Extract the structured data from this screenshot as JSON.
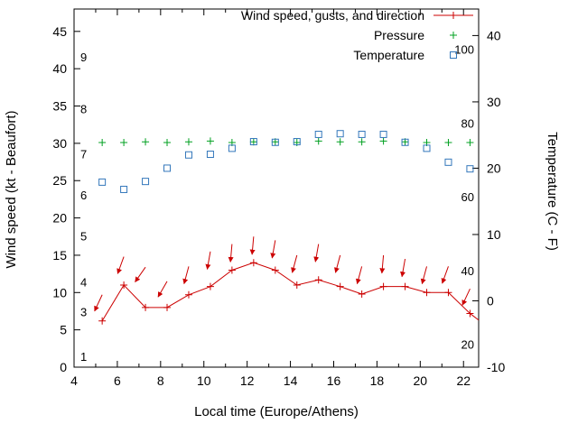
{
  "chart_data": {
    "type": "line",
    "title": "",
    "xlabel": "Local time (Europe/Athens)",
    "ylabel_left": "Wind speed (kt - Beaufort)",
    "ylabel_right": "Temperature (C - F)",
    "x_range": [
      4,
      22.7
    ],
    "x_ticks": [
      4,
      6,
      8,
      10,
      12,
      14,
      16,
      18,
      20,
      22
    ],
    "y_left_range": [
      0,
      48
    ],
    "y_left_ticks": [
      0,
      5,
      10,
      15,
      20,
      25,
      30,
      35,
      40,
      45
    ],
    "y_right_range": [
      -10,
      44
    ],
    "y_right_ticks": [
      -10,
      0,
      10,
      20,
      30,
      40
    ],
    "beaufort_labels": [
      {
        "label": "1",
        "kt": 1.3
      },
      {
        "label": "3",
        "kt": 7.3
      },
      {
        "label": "4",
        "kt": 11.3
      },
      {
        "label": "5",
        "kt": 17.5
      },
      {
        "label": "6",
        "kt": 23
      },
      {
        "label": "7",
        "kt": 28.5
      },
      {
        "label": "8",
        "kt": 34.5
      },
      {
        "label": "9",
        "kt": 41.5
      }
    ],
    "fahrenheit_labels": [
      {
        "label": "20",
        "f": 20
      },
      {
        "label": "40",
        "f": 40
      },
      {
        "label": "60",
        "f": 60
      },
      {
        "label": "80",
        "f": 80
      },
      {
        "label": "100",
        "f": 100
      }
    ],
    "legend": [
      {
        "label": "Wind speed, gusts, and direction",
        "marker": "line-plus",
        "color": "#cc0000"
      },
      {
        "label": "Pressure",
        "marker": "plus",
        "color": "#00a020"
      },
      {
        "label": "Temperature",
        "marker": "square",
        "color": "#3377bb"
      }
    ],
    "colors": {
      "wind": "#cc0000",
      "pressure": "#00a020",
      "temperature": "#3377bb",
      "axis": "#000000"
    },
    "x": [
      5.3,
      6.3,
      7.3,
      8.3,
      9.3,
      10.3,
      11.3,
      12.3,
      13.3,
      14.3,
      15.3,
      16.3,
      17.3,
      18.3,
      19.3,
      20.3,
      21.3,
      22.3
    ],
    "wind_speed_kt": [
      6.2,
      11,
      8,
      8,
      9.7,
      10.8,
      13,
      14,
      13,
      11,
      11.7,
      10.8,
      9.8,
      10.8,
      10.8,
      10,
      10,
      7.2
    ],
    "wind_tail": {
      "x": 22.7,
      "kt": 6.3
    },
    "gusts_kt": [
      9.7,
      14.8,
      13.4,
      11.5,
      13.5,
      15.5,
      16.5,
      17.5,
      17,
      15,
      16.5,
      15,
      13.5,
      15,
      14.5,
      13.5,
      13.5,
      10.5
    ],
    "wind_dir_deg": [
      205,
      200,
      215,
      210,
      195,
      190,
      185,
      185,
      190,
      195,
      190,
      195,
      195,
      185,
      190,
      195,
      200,
      205
    ],
    "pressure_plot_kt": [
      30.1,
      30.1,
      30.2,
      30.1,
      30.2,
      30.3,
      30.1,
      30.2,
      30.2,
      30.1,
      30.3,
      30.2,
      30.2,
      30.3,
      30.2,
      30.1,
      30.1,
      30.1
    ],
    "temperature_c": [
      17.9,
      16.8,
      18,
      20,
      22,
      22.1,
      23,
      24,
      23.9,
      24,
      25.1,
      25.2,
      25.1,
      25.1,
      23.9,
      23,
      20.9,
      19.9
    ]
  }
}
